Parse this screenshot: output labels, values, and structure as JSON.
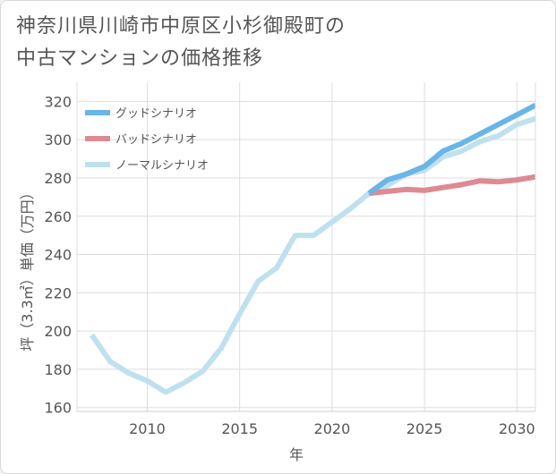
{
  "title_line1": "神奈川県川崎市中原区小杉御殿町の",
  "title_line2": "中古マンションの価格推移",
  "chart_data": {
    "type": "line",
    "xlabel": "年",
    "ylabel": "坪（3.3㎡）単価（万円）",
    "xlim": [
      2006.2,
      2031
    ],
    "ylim": [
      158,
      330
    ],
    "xticks": [
      2010,
      2015,
      2020,
      2025,
      2030
    ],
    "yticks": [
      160,
      180,
      200,
      220,
      240,
      260,
      280,
      300,
      320
    ],
    "grid": true,
    "legend_position": "top-left",
    "series": [
      {
        "name": "グッドシナリオ",
        "color": "#6ab5e8",
        "width": 6,
        "x": [
          2022,
          2023,
          2024,
          2025,
          2026,
          2027,
          2028,
          2029,
          2030,
          2031
        ],
        "y": [
          272,
          279,
          282,
          286,
          294,
          298,
          303,
          308,
          313,
          318
        ]
      },
      {
        "name": "バッドシナリオ",
        "color": "#dd8a92",
        "width": 6,
        "x": [
          2022,
          2023,
          2024,
          2025,
          2026,
          2027,
          2028,
          2029,
          2030,
          2031
        ],
        "y": [
          272,
          273,
          274,
          273.5,
          275,
          276.5,
          278.5,
          278,
          279,
          280.5
        ]
      },
      {
        "name": "ノーマルシナリオ",
        "color": "#bfe1ef",
        "width": 6,
        "x": [
          2007,
          2008,
          2009,
          2010,
          2011,
          2012,
          2013,
          2014,
          2015,
          2016,
          2017,
          2018,
          2019,
          2020,
          2021,
          2022,
          2023,
          2024,
          2025,
          2026,
          2027,
          2028,
          2029,
          2030,
          2031
        ],
        "y": [
          198,
          184,
          178,
          174,
          168,
          173,
          179,
          191,
          209,
          226,
          233,
          250,
          250,
          257,
          264,
          272,
          276,
          282,
          284,
          291,
          294,
          299,
          302,
          308,
          311
        ]
      }
    ]
  }
}
